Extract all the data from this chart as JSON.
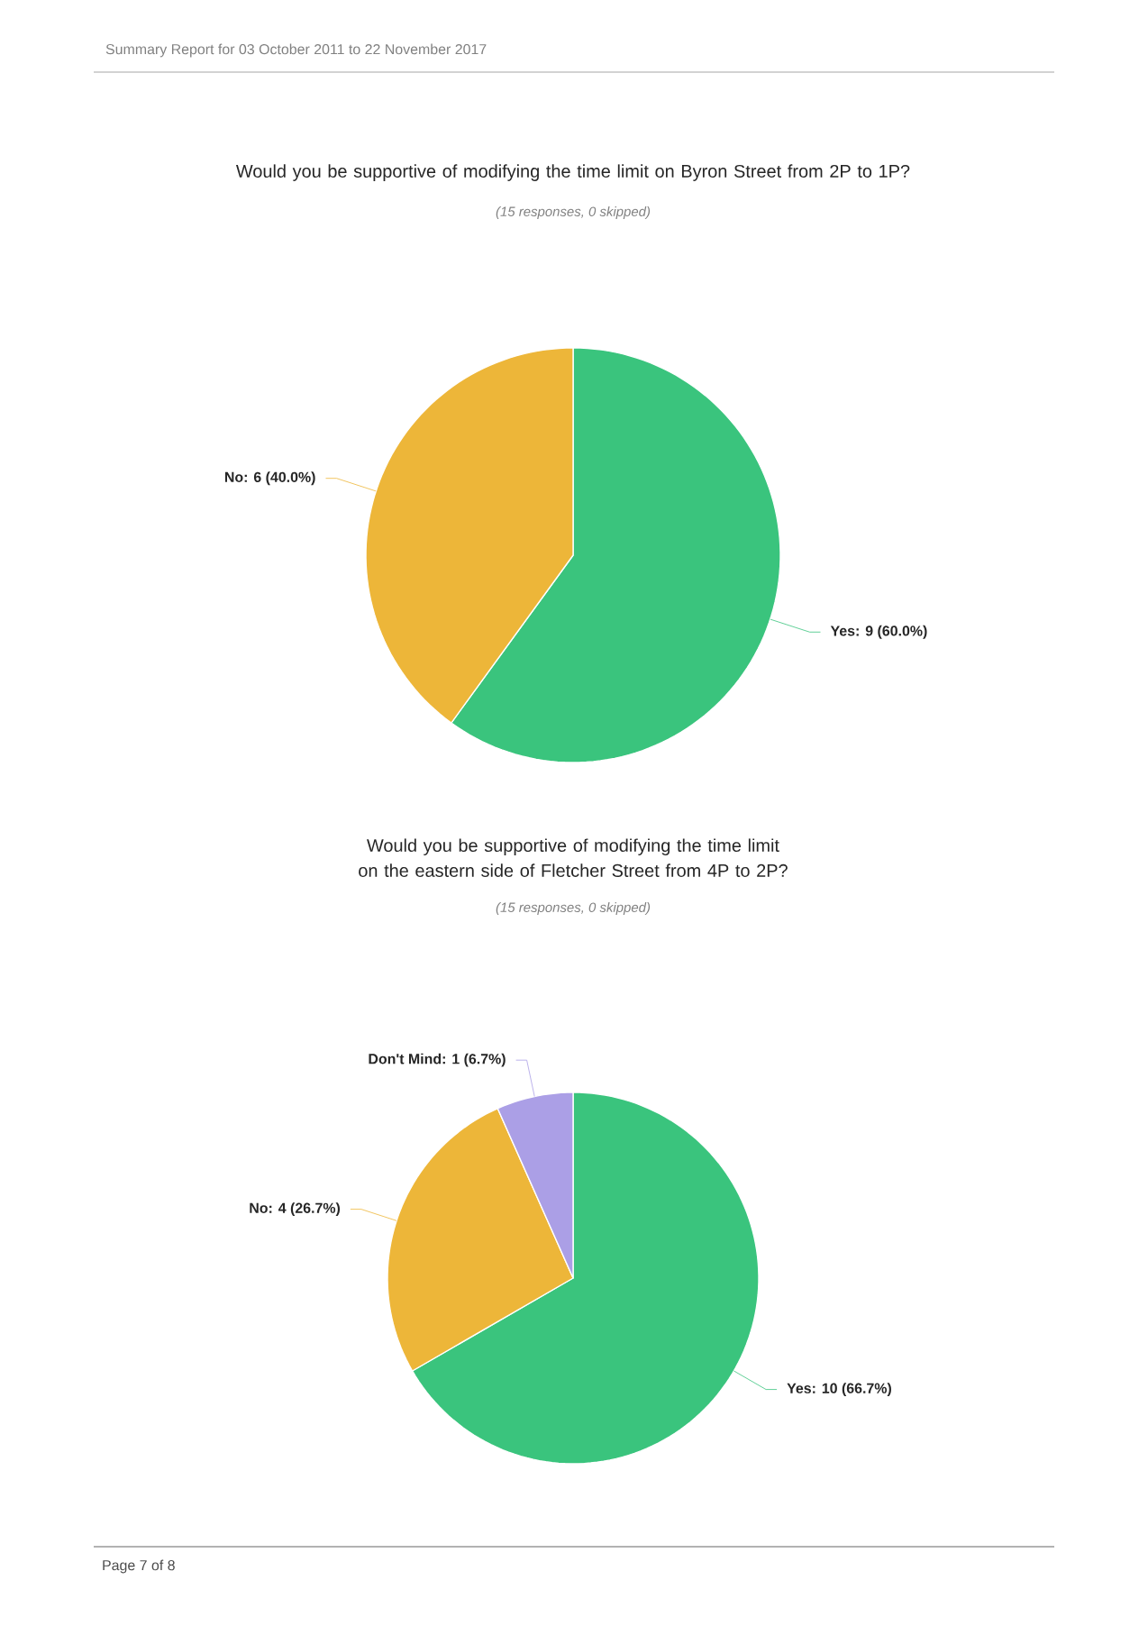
{
  "chart_data": [
    {
      "type": "pie",
      "title": "Would you be supportive of modifying the time limit on Byron Street from 2P to 1P?",
      "subtitle": "(15 responses, 0 skipped)",
      "categories": [
        "Yes: 9 (60.0%)",
        "No: 6 (40.0%)"
      ],
      "values": [
        9,
        6
      ],
      "colors": [
        "#3ac47d",
        "#edb639"
      ],
      "annotations": [
        "Summary Report for 03 October 2011 to 22 November 2017"
      ]
    },
    {
      "type": "pie",
      "title": "Would you be supportive of modifying the time limit on the eastern side of Fletcher Street from 4P to 2P?",
      "subtitle": "(15 responses, 0 skipped)",
      "categories": [
        "Yes: 10 (66.7%)",
        "No: 4 (26.7%)",
        "Don't Mind: 1 (6.7%)"
      ],
      "values": [
        10,
        4,
        1
      ],
      "colors": [
        "#3ac47d",
        "#edb639",
        "#ab9fe6"
      ],
      "annotations": [
        "Page 7 of 8"
      ]
    }
  ]
}
